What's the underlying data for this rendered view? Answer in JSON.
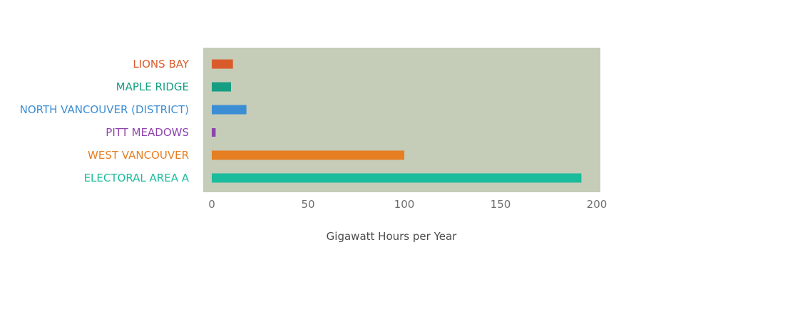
{
  "chart_data": {
    "type": "bar",
    "orientation": "horizontal",
    "categories": [
      "LIONS BAY",
      "MAPLE RIDGE",
      "NORTH VANCOUVER (DISTRICT)",
      "PITT MEADOWS",
      "WEST VANCOUVER",
      "ELECTORAL AREA A"
    ],
    "values": [
      11,
      10,
      18,
      2,
      100,
      192
    ],
    "colors": [
      "#d95b2b",
      "#169e83",
      "#3b8ed4",
      "#8e44ad",
      "#e67e22",
      "#1abc9c"
    ],
    "xlabel": "Gigawatt Hours per Year",
    "ylabel": "",
    "title": "",
    "xlim": [
      0,
      206
    ],
    "xticks": [
      0,
      50,
      100,
      150,
      200
    ],
    "plot_background": "#c5ccb7",
    "grid": false,
    "legend": "none"
  }
}
